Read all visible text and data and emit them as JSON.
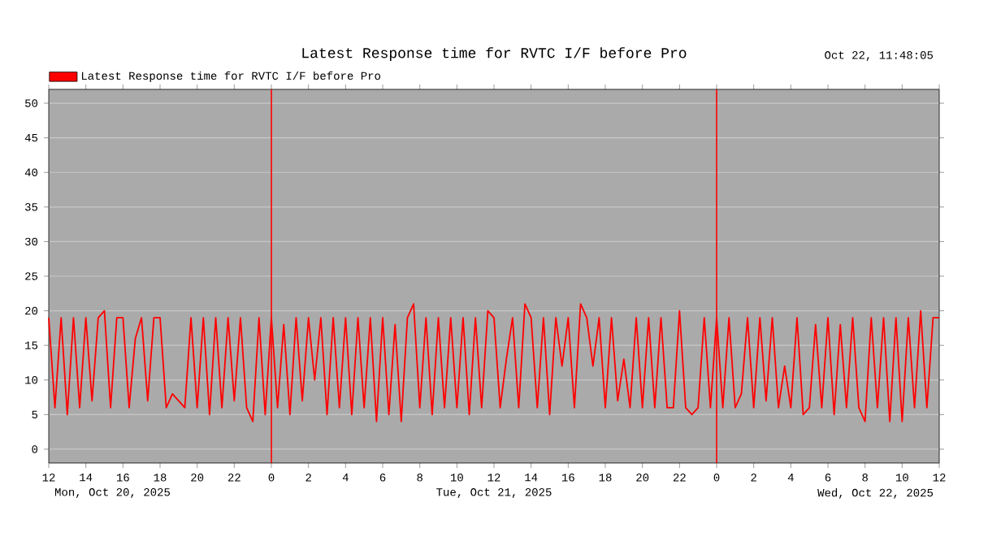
{
  "chart_data": {
    "type": "line",
    "title": "Latest Response time for RVTC I/F before Pro",
    "annotations": [
      "Oct 22, 11:48:05",
      "Mon, Oct 20, 2025",
      "Tue, Oct 21, 2025",
      "Wed, Oct 22, 2025"
    ],
    "xlim": [
      "2025-10-20T12:00",
      "2025-10-22T12:00"
    ],
    "xticks": [
      {
        "value": "2025-10-20T12:00",
        "label": "12"
      },
      {
        "value": "2025-10-20T14:00",
        "label": "14"
      },
      {
        "value": "2025-10-20T16:00",
        "label": "16"
      },
      {
        "value": "2025-10-20T18:00",
        "label": "18"
      },
      {
        "value": "2025-10-20T20:00",
        "label": "20"
      },
      {
        "value": "2025-10-20T22:00",
        "label": "22"
      },
      {
        "value": "2025-10-21T00:00",
        "label": "0"
      },
      {
        "value": "2025-10-21T02:00",
        "label": "2"
      },
      {
        "value": "2025-10-21T04:00",
        "label": "4"
      },
      {
        "value": "2025-10-21T06:00",
        "label": "6"
      },
      {
        "value": "2025-10-21T08:00",
        "label": "8"
      },
      {
        "value": "2025-10-21T10:00",
        "label": "10"
      },
      {
        "value": "2025-10-21T12:00",
        "label": "12"
      },
      {
        "value": "2025-10-21T14:00",
        "label": "14"
      },
      {
        "value": "2025-10-21T16:00",
        "label": "16"
      },
      {
        "value": "2025-10-21T18:00",
        "label": "18"
      },
      {
        "value": "2025-10-21T20:00",
        "label": "20"
      },
      {
        "value": "2025-10-21T22:00",
        "label": "22"
      },
      {
        "value": "2025-10-22T00:00",
        "label": "0"
      },
      {
        "value": "2025-10-22T02:00",
        "label": "2"
      },
      {
        "value": "2025-10-22T04:00",
        "label": "4"
      },
      {
        "value": "2025-10-22T06:00",
        "label": "6"
      },
      {
        "value": "2025-10-22T08:00",
        "label": "8"
      },
      {
        "value": "2025-10-22T10:00",
        "label": "10"
      },
      {
        "value": "2025-10-22T12:00",
        "label": "12"
      }
    ],
    "ylim": [
      -2,
      52
    ],
    "yticks": [
      0,
      5,
      10,
      15,
      20,
      25,
      30,
      35,
      40,
      45,
      50
    ],
    "grid": "y",
    "legend": "top left",
    "ref_lines": [
      {
        "axis": "x",
        "value": "2025-10-21T00:00",
        "color": "#ff0000"
      },
      {
        "axis": "x",
        "value": "2025-10-22T00:00",
        "color": "#ff0000"
      }
    ],
    "series": [
      {
        "name": "Latest Response time for RVTC I/F before Pro",
        "color": "#ff0000",
        "x": [
          "2025-10-20T12:00",
          "2025-10-20T12:20",
          "2025-10-20T12:40",
          "2025-10-20T13:00",
          "2025-10-20T13:20",
          "2025-10-20T13:40",
          "2025-10-20T14:00",
          "2025-10-20T14:20",
          "2025-10-20T14:40",
          "2025-10-20T15:00",
          "2025-10-20T15:20",
          "2025-10-20T15:40",
          "2025-10-20T16:00",
          "2025-10-20T16:20",
          "2025-10-20T16:40",
          "2025-10-20T17:00",
          "2025-10-20T17:20",
          "2025-10-20T17:40",
          "2025-10-20T18:00",
          "2025-10-20T18:20",
          "2025-10-20T18:40",
          "2025-10-20T19:00",
          "2025-10-20T19:20",
          "2025-10-20T19:40",
          "2025-10-20T20:00",
          "2025-10-20T20:20",
          "2025-10-20T20:40",
          "2025-10-20T21:00",
          "2025-10-20T21:20",
          "2025-10-20T21:40",
          "2025-10-20T22:00",
          "2025-10-20T22:20",
          "2025-10-20T22:40",
          "2025-10-20T23:00",
          "2025-10-20T23:20",
          "2025-10-20T23:40",
          "2025-10-21T00:00",
          "2025-10-21T00:20",
          "2025-10-21T00:40",
          "2025-10-21T01:00",
          "2025-10-21T01:20",
          "2025-10-21T01:40",
          "2025-10-21T02:00",
          "2025-10-21T02:20",
          "2025-10-21T02:40",
          "2025-10-21T03:00",
          "2025-10-21T03:20",
          "2025-10-21T03:40",
          "2025-10-21T04:00",
          "2025-10-21T04:20",
          "2025-10-21T04:40",
          "2025-10-21T05:00",
          "2025-10-21T05:20",
          "2025-10-21T05:40",
          "2025-10-21T06:00",
          "2025-10-21T06:20",
          "2025-10-21T06:40",
          "2025-10-21T07:00",
          "2025-10-21T07:20",
          "2025-10-21T07:40",
          "2025-10-21T08:00",
          "2025-10-21T08:20",
          "2025-10-21T08:40",
          "2025-10-21T09:00",
          "2025-10-21T09:20",
          "2025-10-21T09:40",
          "2025-10-21T10:00",
          "2025-10-21T10:20",
          "2025-10-21T10:40",
          "2025-10-21T11:00",
          "2025-10-21T11:20",
          "2025-10-21T11:40",
          "2025-10-21T12:00",
          "2025-10-21T12:20",
          "2025-10-21T12:40",
          "2025-10-21T13:00",
          "2025-10-21T13:20",
          "2025-10-21T13:40",
          "2025-10-21T14:00",
          "2025-10-21T14:20",
          "2025-10-21T14:40",
          "2025-10-21T15:00",
          "2025-10-21T15:20",
          "2025-10-21T15:40",
          "2025-10-21T16:00",
          "2025-10-21T16:20",
          "2025-10-21T16:40",
          "2025-10-21T17:00",
          "2025-10-21T17:20",
          "2025-10-21T17:40",
          "2025-10-21T18:00",
          "2025-10-21T18:20",
          "2025-10-21T18:40",
          "2025-10-21T19:00",
          "2025-10-21T19:20",
          "2025-10-21T19:40",
          "2025-10-21T20:00",
          "2025-10-21T20:20",
          "2025-10-21T20:40",
          "2025-10-21T21:00",
          "2025-10-21T21:20",
          "2025-10-21T21:40",
          "2025-10-21T22:00",
          "2025-10-21T22:20",
          "2025-10-21T22:40",
          "2025-10-21T23:00",
          "2025-10-21T23:20",
          "2025-10-21T23:40",
          "2025-10-22T00:00",
          "2025-10-22T00:20",
          "2025-10-22T00:40",
          "2025-10-22T01:00",
          "2025-10-22T01:20",
          "2025-10-22T01:40",
          "2025-10-22T02:00",
          "2025-10-22T02:20",
          "2025-10-22T02:40",
          "2025-10-22T03:00",
          "2025-10-22T03:20",
          "2025-10-22T03:40",
          "2025-10-22T04:00",
          "2025-10-22T04:20",
          "2025-10-22T04:40",
          "2025-10-22T05:00",
          "2025-10-22T05:20",
          "2025-10-22T05:40",
          "2025-10-22T06:00",
          "2025-10-22T06:20",
          "2025-10-22T06:40",
          "2025-10-22T07:00",
          "2025-10-22T07:20",
          "2025-10-22T07:40",
          "2025-10-22T08:00",
          "2025-10-22T08:20",
          "2025-10-22T08:40",
          "2025-10-22T09:00",
          "2025-10-22T09:20",
          "2025-10-22T09:40",
          "2025-10-22T10:00",
          "2025-10-22T10:20",
          "2025-10-22T10:40",
          "2025-10-22T11:00",
          "2025-10-22T11:20",
          "2025-10-22T11:40",
          "2025-10-22T12:00"
        ],
        "values": [
          19,
          6,
          19,
          5,
          19,
          6,
          19,
          7,
          19,
          20,
          6,
          19,
          19,
          6,
          16,
          19,
          7,
          19,
          19,
          6,
          8,
          7,
          6,
          19,
          6,
          19,
          5,
          19,
          6,
          19,
          7,
          19,
          6,
          4,
          19,
          5,
          19,
          6,
          18,
          5,
          19,
          7,
          19,
          10,
          19,
          5,
          19,
          6,
          19,
          5,
          19,
          6,
          19,
          4,
          19,
          5,
          18,
          4,
          19,
          21,
          6,
          19,
          5,
          19,
          6,
          19,
          6,
          19,
          5,
          19,
          6,
          20,
          19,
          6,
          13,
          19,
          6,
          21,
          19,
          6,
          19,
          5,
          19,
          12,
          19,
          6,
          21,
          19,
          12,
          19,
          6,
          19,
          7,
          13,
          6,
          19,
          6,
          19,
          6,
          19,
          6,
          6,
          20,
          6,
          5,
          6,
          19,
          6,
          19,
          6,
          19,
          6,
          8,
          19,
          6,
          19,
          7,
          19,
          6,
          12,
          6,
          19,
          5,
          6,
          18,
          6,
          19,
          5,
          18,
          6,
          19,
          6,
          4,
          19,
          6,
          19,
          4,
          19,
          4,
          19,
          6,
          20,
          6,
          19,
          19
        ]
      }
    ]
  }
}
